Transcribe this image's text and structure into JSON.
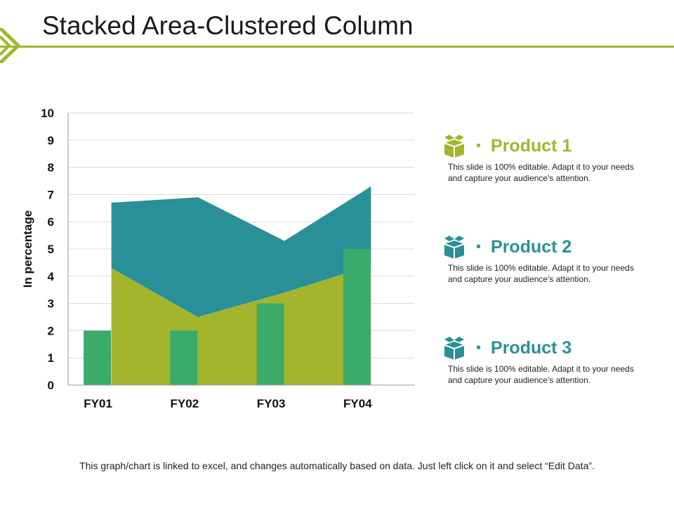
{
  "title": "Stacked Area-Clustered Column",
  "colors": {
    "accent": "#a2b52d",
    "teal": "#2a9097",
    "green": "#3bab6a",
    "grid": "#d9d9d9",
    "axis": "#999999"
  },
  "chart_data": {
    "type": "area",
    "categories": [
      "FY01",
      "FY02",
      "FY03",
      "FY04"
    ],
    "ylabel": "In percentage",
    "ylim": [
      0,
      10
    ],
    "yticks": [
      0,
      1,
      2,
      3,
      4,
      5,
      6,
      7,
      8,
      9,
      10
    ],
    "grid": true,
    "area_series": [
      {
        "values": [
          4.3,
          2.5,
          3.4,
          4.4
        ],
        "color": "#a2b52d"
      },
      {
        "values": [
          2.4,
          4.4,
          1.9,
          2.9
        ],
        "color": "#2a9097"
      }
    ],
    "column_series": [
      {
        "values": [
          2,
          2,
          3,
          5
        ],
        "color": "#3bab6a"
      }
    ]
  },
  "legend": [
    {
      "name": "Product 1",
      "bullet": "•",
      "desc": "This slide is 100% editable. Adapt it to your needs and capture your audience's attention.",
      "color": "#a2b52d",
      "icon": "box-icon"
    },
    {
      "name": "Product 2",
      "bullet": "•",
      "desc": "This slide is 100% editable. Adapt it to your needs and capture your audience's attention.",
      "color": "#2a9097",
      "icon": "box-icon"
    },
    {
      "name": "Product 3",
      "bullet": "•",
      "desc": "This slide is 100% editable. Adapt it to your needs and capture your audience's attention.",
      "color": "#2a9097",
      "icon": "box-icon"
    }
  ],
  "footnote": "This graph/chart is linked to excel, and changes automatically based on data. Just left click on it and select “Edit Data”."
}
